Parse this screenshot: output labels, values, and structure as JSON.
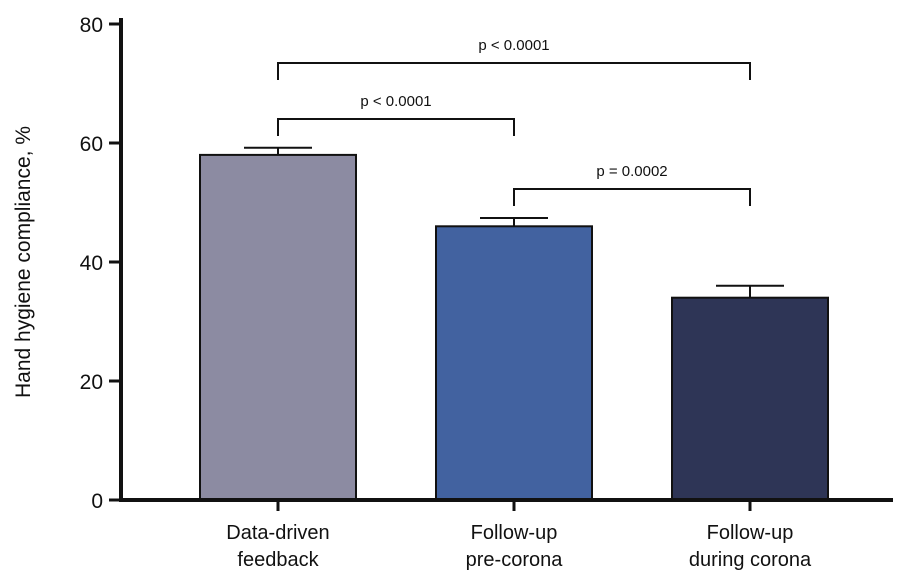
{
  "chart_data": {
    "type": "bar",
    "title": "",
    "xlabel": "",
    "ylabel": "Hand hygiene compliance, %",
    "ylim": [
      0,
      80
    ],
    "yticks": [
      0,
      20,
      40,
      60,
      80
    ],
    "grid": false,
    "legend": "none",
    "categories": [
      {
        "line1": "Data-driven",
        "line2": "feedback"
      },
      {
        "line1": "Follow-up",
        "line2": "pre-corona"
      },
      {
        "line1": "Follow-up",
        "line2": "during corona"
      }
    ],
    "values": [
      58,
      46,
      34
    ],
    "error_upper": [
      59.2,
      47.4,
      36.0
    ],
    "colors": [
      "#8c8ba2",
      "#4262a0",
      "#2e3556"
    ],
    "significance": [
      {
        "from": 0,
        "to": 1,
        "label": "p < 0.0001"
      },
      {
        "from": 0,
        "to": 2,
        "label": "p < 0.0001"
      },
      {
        "from": 1,
        "to": 2,
        "label": "p = 0.0002"
      }
    ]
  }
}
